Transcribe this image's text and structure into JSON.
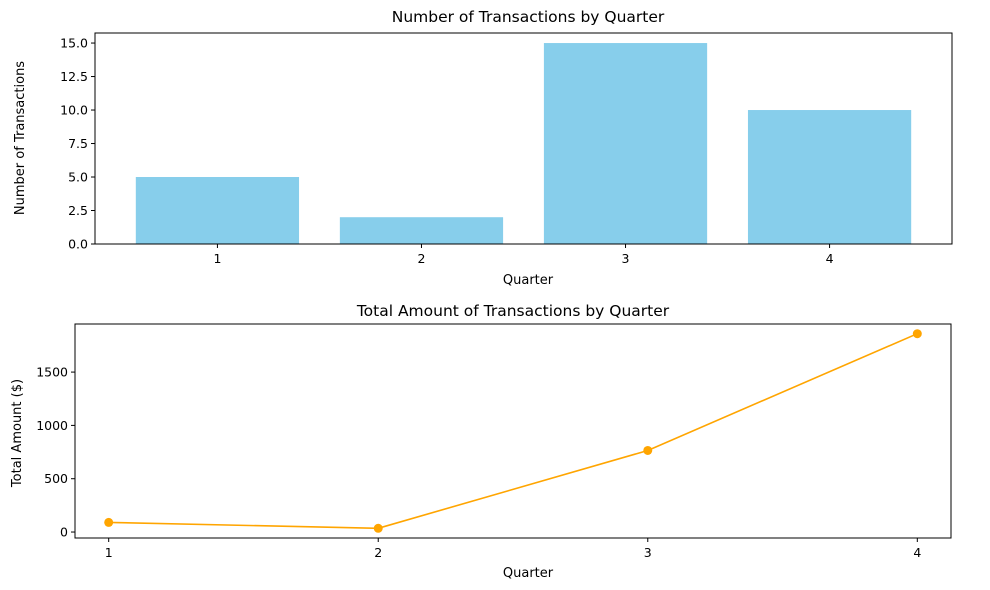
{
  "chart_data": [
    {
      "type": "bar",
      "title": "Number of Transactions by Quarter",
      "xlabel": "Quarter",
      "ylabel": "Number of Transactions",
      "categories": [
        "1",
        "2",
        "3",
        "4"
      ],
      "values": [
        5,
        2,
        15,
        10
      ],
      "ylim": [
        0,
        15.75
      ],
      "yticks": [
        0,
        2.5,
        5,
        7.5,
        10,
        12.5,
        15
      ],
      "ytick_labels": [
        "0.0",
        "2.5",
        "5.0",
        "7.5",
        "10.0",
        "12.5",
        "15.0"
      ],
      "grid": false,
      "color": "#87ceeb"
    },
    {
      "type": "line",
      "title": "Total Amount of Transactions by Quarter",
      "xlabel": "Quarter",
      "ylabel": "Total Amount ($)",
      "x": [
        1,
        2,
        3,
        4
      ],
      "xtick_labels": [
        "1",
        "2",
        "3",
        "4"
      ],
      "values": [
        90,
        35,
        765,
        1860
      ],
      "ylim": [
        -56,
        1951
      ],
      "yticks": [
        0,
        500,
        1000,
        1500
      ],
      "ytick_labels": [
        "0",
        "500",
        "1000",
        "1500"
      ],
      "marker": "circle",
      "grid": false,
      "color": "#ffa500"
    }
  ]
}
